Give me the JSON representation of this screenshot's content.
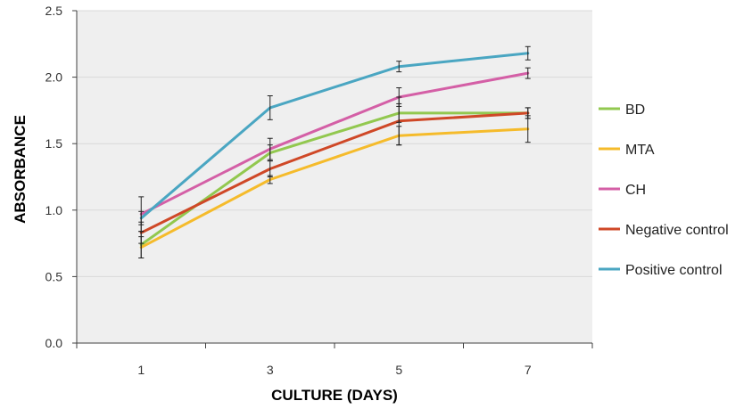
{
  "chart_data": {
    "type": "line",
    "categories": [
      "1",
      "3",
      "5",
      "7"
    ],
    "xlabel": "CULTURE (DAYS)",
    "ylabel": "ABSORBANCE",
    "ylim": [
      0,
      2.5
    ],
    "yticks": [
      "0.0",
      "0.5",
      "1.0",
      "1.5",
      "2.0",
      "2.5"
    ],
    "grid": true,
    "legend_position": "right",
    "colors": {
      "plot_background": "#efefef",
      "gridline": "#d9d9d9",
      "axis": "#404040",
      "error_bar": "#222222"
    },
    "series": [
      {
        "name": "BD",
        "color": "#92c84f",
        "values": [
          0.74,
          1.43,
          1.73,
          1.73
        ],
        "errors": [
          0.1,
          0.06,
          0.07,
          0.04
        ]
      },
      {
        "name": "MTA",
        "color": "#f5bb2b",
        "values": [
          0.72,
          1.23,
          1.56,
          1.61
        ],
        "errors": [
          0.08,
          0.03,
          0.07,
          0.1
        ]
      },
      {
        "name": "CH",
        "color": "#d45fa6",
        "values": [
          0.97,
          1.46,
          1.85,
          2.03
        ],
        "errors": [
          0.13,
          0.08,
          0.07,
          0.04
        ]
      },
      {
        "name": "Negative control",
        "color": "#cf4827",
        "values": [
          0.83,
          1.31,
          1.67,
          1.73
        ],
        "errors": [
          0.08,
          0.06,
          0.18,
          0.04
        ]
      },
      {
        "name": "Positive control",
        "color": "#4aa6c2",
        "values": [
          0.94,
          1.77,
          2.08,
          2.18
        ],
        "errors": [
          0.05,
          0.09,
          0.04,
          0.05
        ]
      }
    ]
  }
}
